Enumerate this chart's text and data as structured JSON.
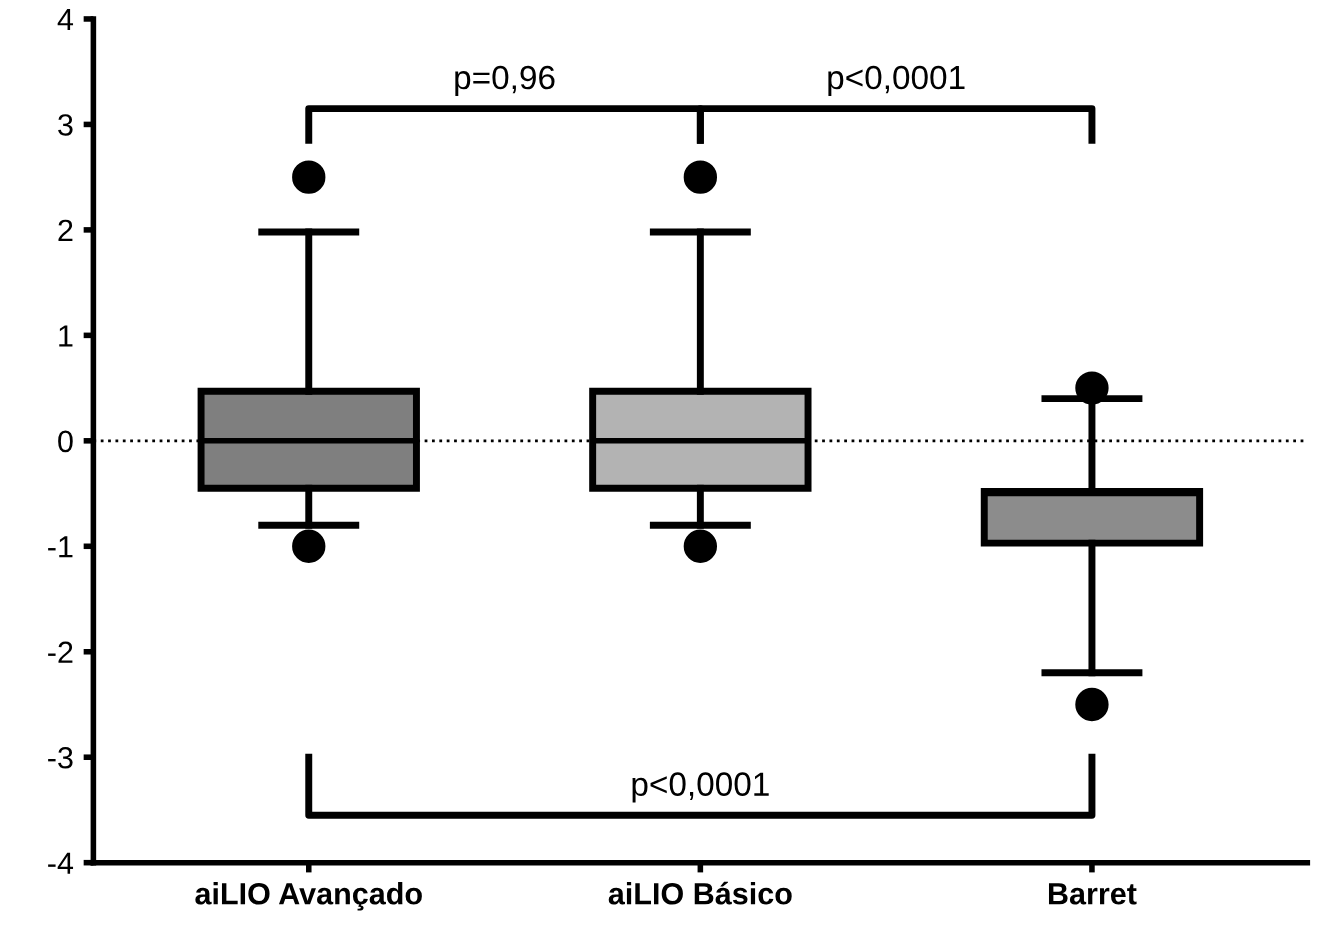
{
  "chart_data": {
    "type": "box",
    "categories": [
      "aiLIO Avançado",
      "aiLIO Básico",
      "Barret"
    ],
    "colors": [
      "#7f7f7f",
      "#b3b3b3",
      "#8c8c8c"
    ],
    "boxes": [
      {
        "low": -0.8,
        "q1": -0.45,
        "median": 0,
        "q3": 0.47,
        "high": 1.98,
        "outliers": [
          2.5,
          -1.0
        ]
      },
      {
        "low": -0.8,
        "q1": -0.45,
        "median": 0,
        "q3": 0.47,
        "high": 1.98,
        "outliers": [
          2.5,
          -1.0
        ]
      },
      {
        "low": -2.2,
        "q1": -0.97,
        "median": -0.5,
        "q3": -0.48,
        "high": 0.4,
        "outliers": [
          0.5,
          -2.5
        ]
      }
    ],
    "ylim": [
      -4,
      4
    ],
    "yticks": [
      -4,
      -3,
      -2,
      -1,
      0,
      1,
      2,
      3,
      4
    ],
    "grid": false,
    "ref_lines": [
      {
        "axis": "y",
        "value": 0,
        "line_style": "dotted",
        "color": "#000000"
      }
    ],
    "annotations": [
      "p=0,96",
      "p<0,0001",
      "p<0,0001"
    ]
  }
}
